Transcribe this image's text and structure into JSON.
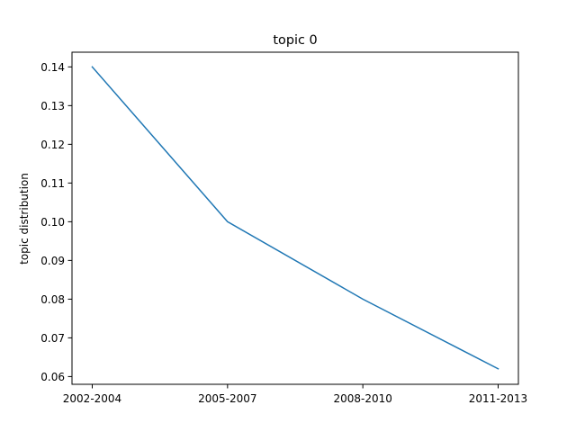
{
  "chart_data": {
    "type": "line",
    "title": "topic 0",
    "xlabel": "",
    "ylabel": "topic distribution",
    "categories": [
      "2002-2004",
      "2005-2007",
      "2008-2010",
      "2011-2013"
    ],
    "series": [
      {
        "values": [
          0.14,
          0.1,
          0.08,
          0.062
        ],
        "color": "#1f77b4"
      }
    ],
    "ylim": [
      0.058,
      0.1438
    ],
    "yticks": [
      {
        "value": 0.06,
        "label": "0.06"
      },
      {
        "value": 0.07,
        "label": "0.07"
      },
      {
        "value": 0.08,
        "label": "0.08"
      },
      {
        "value": 0.09,
        "label": "0.09"
      },
      {
        "value": 0.1,
        "label": "0.10"
      },
      {
        "value": 0.11,
        "label": "0.11"
      },
      {
        "value": 0.12,
        "label": "0.12"
      },
      {
        "value": 0.13,
        "label": "0.13"
      },
      {
        "value": 0.14,
        "label": "0.14"
      }
    ],
    "grid": false,
    "legend": "none"
  }
}
